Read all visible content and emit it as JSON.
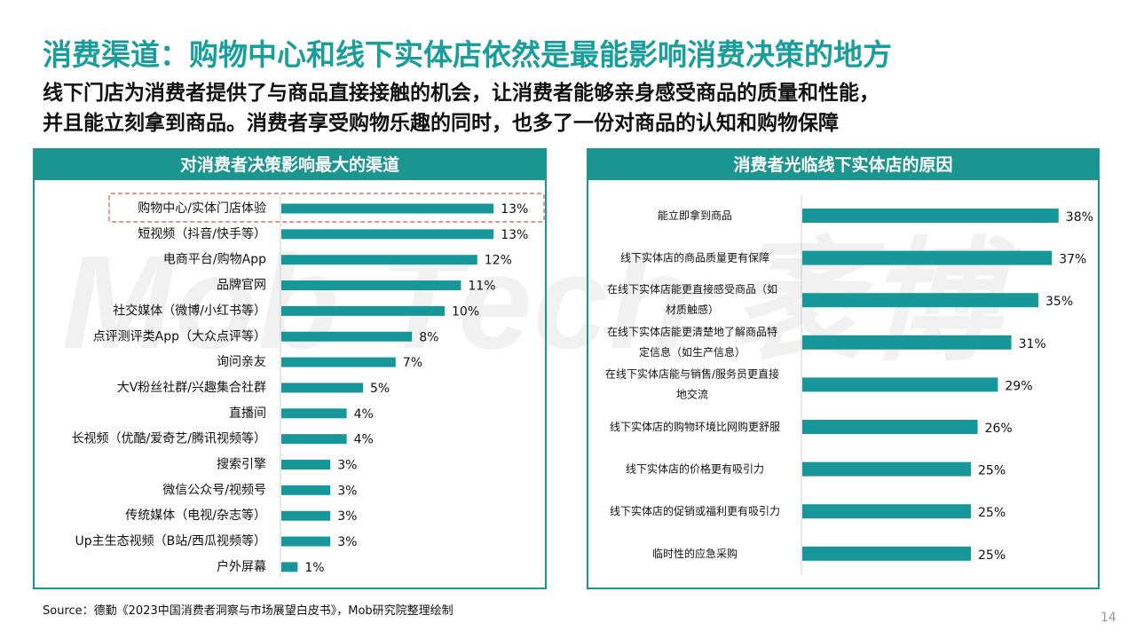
{
  "watermark": "Mob Tech 袤博",
  "title": "消费渠道：购物中心和线下实体店依然是最能影响消费决策的地方",
  "subtitle": {
    "line1": "线下门店为消费者提供了与商品直接接触的机会，让消费者能够亲身感受商品的质量和性能，",
    "line2": "并且能立刻拿到商品。消费者享受购物乐趣的同时，也多了一份对商品的认知和购物保障"
  },
  "colors": {
    "accent": "#1a9590",
    "title": "#1a9e9c",
    "bar": "#17979a",
    "highlight_border": "#e05555"
  },
  "source": "Source：德勤《2023中国消费者洞察与市场展望白皮书》，Mob研究院整理绘制",
  "page_number": "14",
  "chart_data": [
    {
      "type": "bar",
      "orientation": "horizontal",
      "title": "对消费者决策影响最大的渠道",
      "highlighted_category": "购物中心/实体门店体验",
      "categories": [
        "购物中心/实体门店体验",
        "短视频（抖音/快手等）",
        "电商平台/购物App",
        "品牌官网",
        "社交媒体（微博/小红书等）",
        "点评测评类App（大众点评等）",
        "询问亲友",
        "大V粉丝社群/兴趣集合社群",
        "直播间",
        "长视频（优酷/爱奇艺/腾讯视频等）",
        "搜索引擎",
        "微信公众号/视频号",
        "传统媒体（电视/杂志等）",
        "Up主生态视频（B站/西瓜视频等）",
        "户外屏幕"
      ],
      "values": [
        13,
        13,
        12,
        11,
        10,
        8,
        7,
        5,
        4,
        4,
        3,
        3,
        3,
        3,
        1
      ],
      "value_labels": [
        "13%",
        "13%",
        "12%",
        "11%",
        "10%",
        "8%",
        "7%",
        "5%",
        "4%",
        "4%",
        "3%",
        "3%",
        "3%",
        "3%",
        "1%"
      ],
      "unit": "%"
    },
    {
      "type": "bar",
      "orientation": "horizontal",
      "title": "消费者光临线下实体店的原因",
      "categories": [
        [
          "能立即拿到商品"
        ],
        [
          "线下实体店的商品质量更有保障"
        ],
        [
          "在线下实体店能更直接感受商品（如",
          "材质触感）"
        ],
        [
          "在线下实体店能更清楚地了解商品特",
          "定信息（如生产信息）"
        ],
        [
          "在线下实体店能与销售/服务员更直接",
          "地交流"
        ],
        [
          "线下实体店的购物环境比网购更舒服"
        ],
        [
          "线下实体店的价格更有吸引力"
        ],
        [
          "线下实体店的促销或福利更有吸引力"
        ],
        [
          "临时性的应急采购"
        ]
      ],
      "values": [
        38,
        37,
        35,
        31,
        29,
        26,
        25,
        25,
        25
      ],
      "value_labels": [
        "38%",
        "37%",
        "35%",
        "31%",
        "29%",
        "26%",
        "25%",
        "25%",
        "25%"
      ],
      "unit": "%"
    }
  ]
}
